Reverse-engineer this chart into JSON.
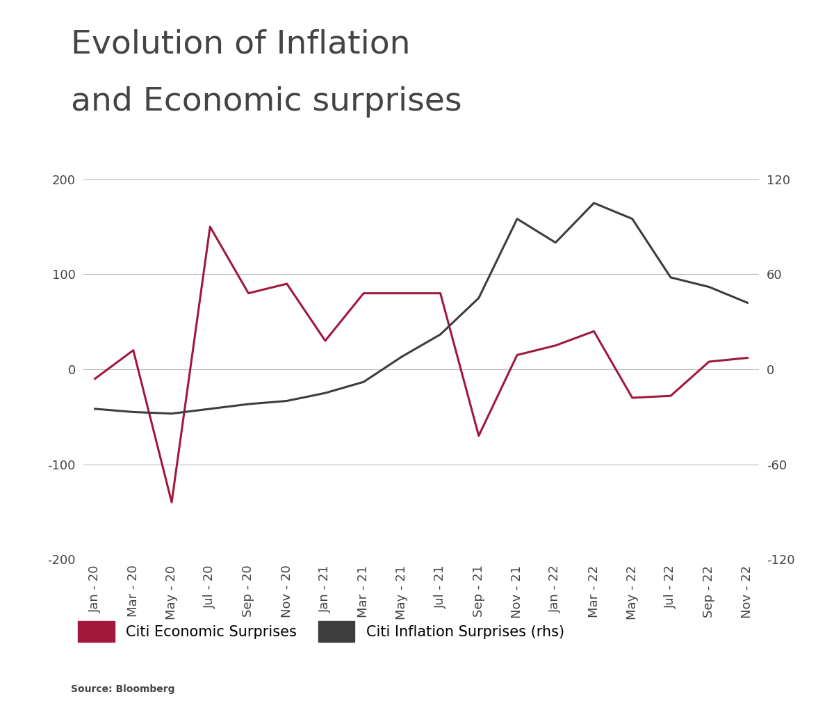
{
  "title_line1": "Evolution of Inflation",
  "title_line2": "and Economic surprises",
  "source": "Source: Bloomberg",
  "x_labels": [
    "Jan - 20",
    "Mar - 20",
    "May - 20",
    "Jul - 20",
    "Sep - 20",
    "Nov - 20",
    "Jan - 21",
    "Mar - 21",
    "May - 21",
    "Jul - 21",
    "Sep - 21",
    "Nov - 21",
    "Jan - 22",
    "Mar - 22",
    "May - 22",
    "Jul - 22",
    "Sep - 22",
    "Nov - 22"
  ],
  "economic_surprises": [
    -10,
    20,
    -140,
    150,
    80,
    90,
    30,
    80,
    80,
    80,
    -70,
    15,
    25,
    40,
    -30,
    -28,
    8,
    12
  ],
  "inflation_surprises": [
    -25,
    -27,
    -28,
    -25,
    -22,
    -20,
    -15,
    -8,
    8,
    22,
    45,
    95,
    80,
    105,
    95,
    58,
    52,
    42
  ],
  "economic_color": "#A0193D",
  "inflation_color": "#3d3d3d",
  "background_color": "#ffffff",
  "left_ylim": [
    -200,
    200
  ],
  "right_ylim": [
    -120,
    120
  ],
  "left_yticks": [
    -200,
    -100,
    0,
    100,
    200
  ],
  "right_yticks": [
    -120,
    -60,
    0,
    60,
    120
  ],
  "grid_color": "#bbbbbb",
  "legend_economic": "Citi Economic Surprises",
  "legend_inflation": "Citi Inflation Surprises (rhs)",
  "title_fontsize": 34,
  "tick_fontsize": 13,
  "legend_fontsize": 15,
  "source_fontsize": 10,
  "line_width": 2.2
}
